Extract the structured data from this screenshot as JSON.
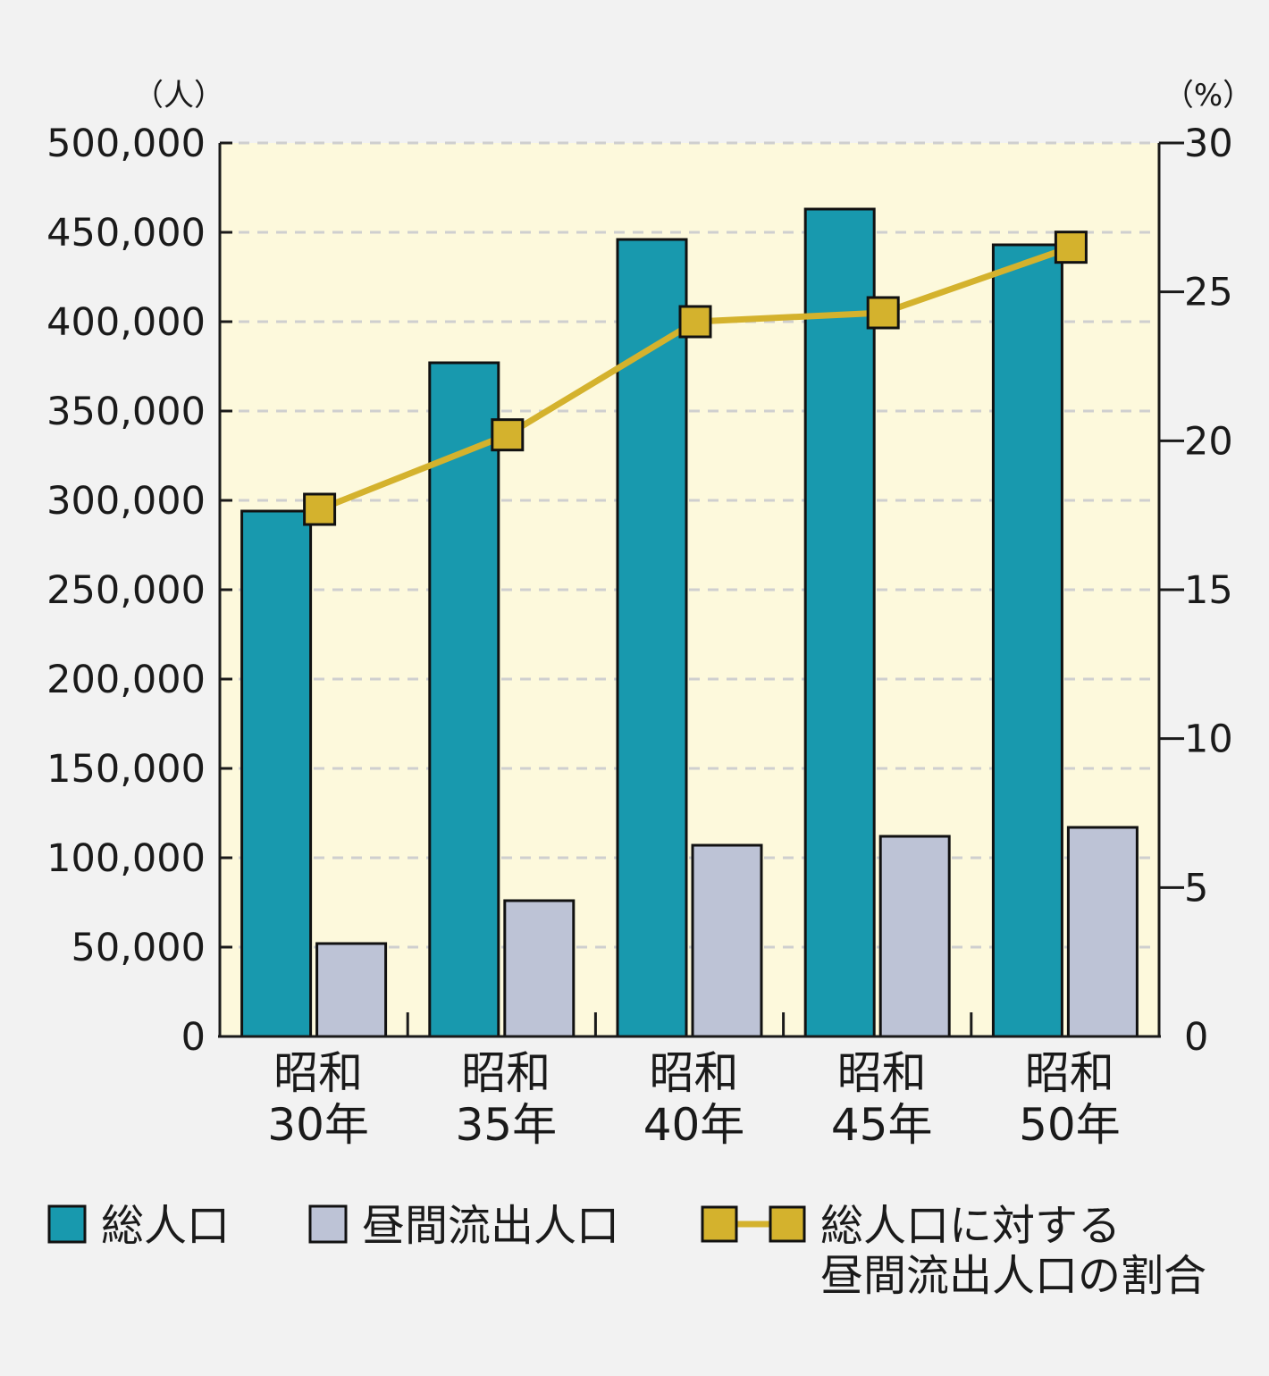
{
  "chart_data": {
    "type": "bar",
    "categories": [
      [
        "昭和",
        "30年"
      ],
      [
        "昭和",
        "35年"
      ],
      [
        "昭和",
        "40年"
      ],
      [
        "昭和",
        "45年"
      ],
      [
        "昭和",
        "50年"
      ]
    ],
    "series": [
      {
        "name": "総人口",
        "type": "bar",
        "axis": "left",
        "color": "#1899ae",
        "values": [
          294000,
          377000,
          446000,
          463000,
          443000
        ]
      },
      {
        "name": "昼間流出人口",
        "type": "bar",
        "axis": "left",
        "color": "#bdc3d6",
        "values": [
          52000,
          76000,
          107000,
          112000,
          117000
        ]
      },
      {
        "name": "総人口に対する\n昼間流出人口の割合",
        "name_lines": [
          "総人口に対する",
          "昼間流出人口の割合"
        ],
        "type": "line",
        "axis": "right",
        "color": "#d4b22d",
        "values": [
          17.7,
          20.2,
          24.0,
          24.3,
          26.5
        ]
      }
    ],
    "y_left": {
      "unit": "（人）",
      "ylim": [
        0,
        500000
      ],
      "ticks": [
        "0",
        "50,000",
        "100,000",
        "150,000",
        "200,000",
        "250,000",
        "300,000",
        "350,000",
        "400,000",
        "450,000",
        "500,000"
      ]
    },
    "y_right": {
      "unit": "（%）",
      "ylim": [
        0,
        30
      ],
      "ticks": [
        "0",
        "5",
        "10",
        "15",
        "20",
        "25",
        "30"
      ]
    },
    "grid": true,
    "legend_position": "bottom",
    "colors": {
      "plot_background": "#fdf9dc",
      "page_background": "#f2f2f2",
      "grid": "#cfcfcf",
      "axis": "#1a1a1a"
    }
  }
}
